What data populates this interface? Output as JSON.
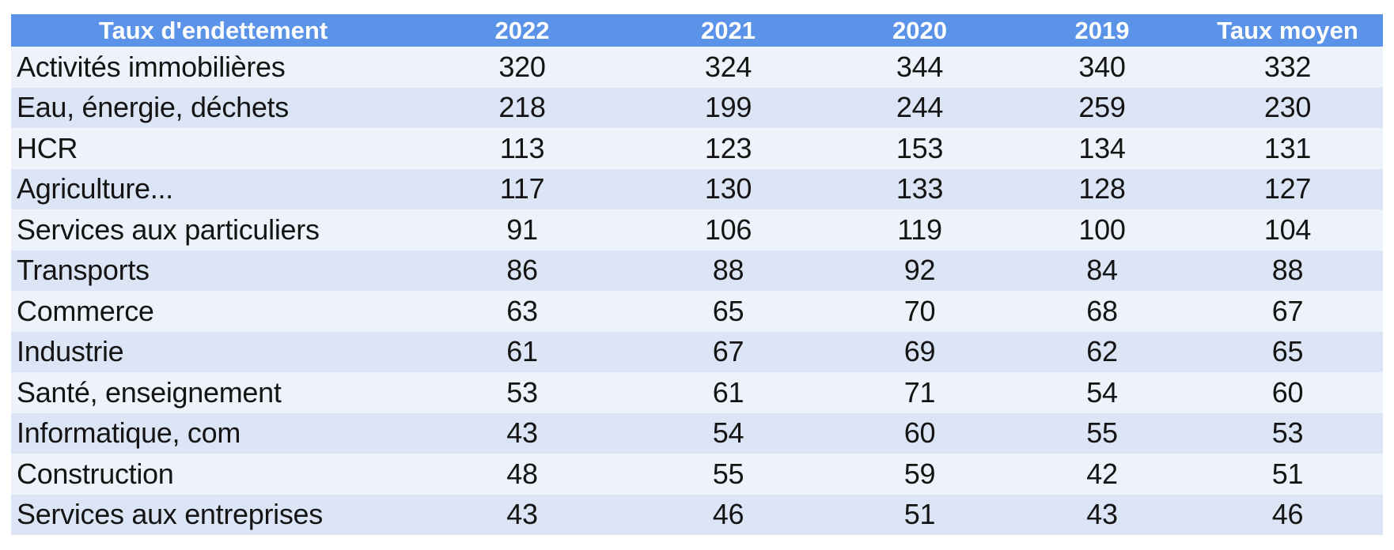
{
  "colors": {
    "header_bg": "#5B93E8",
    "header_text": "#FFFFFF",
    "row_light": "#EEF3FB",
    "row_dark": "#DBE5F6",
    "body_text": "#141414",
    "page_bg": "#FFFFFF"
  },
  "chart_data": {
    "type": "table",
    "title": "Taux d'endettement",
    "columns": [
      "Taux d'endettement",
      "2022",
      "2021",
      "2020",
      "2019",
      "Taux moyen"
    ],
    "categories": [
      "Activités immobilières",
      "Eau, énergie, déchets",
      "HCR",
      "Agriculture...",
      "Services aux particuliers",
      "Transports",
      "Commerce",
      "Industrie",
      "Santé, enseignement",
      "Informatique, com",
      "Construction",
      "Services aux entreprises"
    ],
    "series": [
      {
        "name": "2022",
        "values": [
          320,
          218,
          113,
          117,
          91,
          86,
          63,
          61,
          53,
          43,
          48,
          43
        ]
      },
      {
        "name": "2021",
        "values": [
          324,
          199,
          123,
          130,
          106,
          88,
          65,
          67,
          61,
          54,
          55,
          46
        ]
      },
      {
        "name": "2020",
        "values": [
          344,
          244,
          153,
          133,
          119,
          92,
          70,
          69,
          71,
          60,
          59,
          51
        ]
      },
      {
        "name": "2019",
        "values": [
          340,
          259,
          134,
          128,
          100,
          84,
          68,
          62,
          54,
          55,
          42,
          43
        ]
      },
      {
        "name": "Taux moyen",
        "values": [
          332,
          230,
          131,
          127,
          104,
          88,
          67,
          65,
          60,
          53,
          51,
          46
        ]
      }
    ],
    "rows": [
      {
        "label": "Activités immobilières",
        "values": [
          320,
          324,
          344,
          340,
          332
        ]
      },
      {
        "label": "Eau, énergie, déchets",
        "values": [
          218,
          199,
          244,
          259,
          230
        ]
      },
      {
        "label": "HCR",
        "values": [
          113,
          123,
          153,
          134,
          131
        ]
      },
      {
        "label": "Agriculture...",
        "values": [
          117,
          130,
          133,
          128,
          127
        ]
      },
      {
        "label": "Services aux particuliers",
        "values": [
          91,
          106,
          119,
          100,
          104
        ]
      },
      {
        "label": "Transports",
        "values": [
          86,
          88,
          92,
          84,
          88
        ]
      },
      {
        "label": "Commerce",
        "values": [
          63,
          65,
          70,
          68,
          67
        ]
      },
      {
        "label": "Industrie",
        "values": [
          61,
          67,
          69,
          62,
          65
        ]
      },
      {
        "label": "Santé, enseignement",
        "values": [
          53,
          61,
          71,
          54,
          60
        ]
      },
      {
        "label": "Informatique, com",
        "values": [
          43,
          54,
          60,
          55,
          53
        ]
      },
      {
        "label": "Construction",
        "values": [
          48,
          55,
          59,
          42,
          51
        ]
      },
      {
        "label": "Services aux entreprises",
        "values": [
          43,
          46,
          51,
          43,
          46
        ]
      }
    ],
    "layout": {
      "header_row": true,
      "striped_rows": true,
      "gridlines": false,
      "first_column_align": "left",
      "value_columns_align": "center"
    }
  }
}
